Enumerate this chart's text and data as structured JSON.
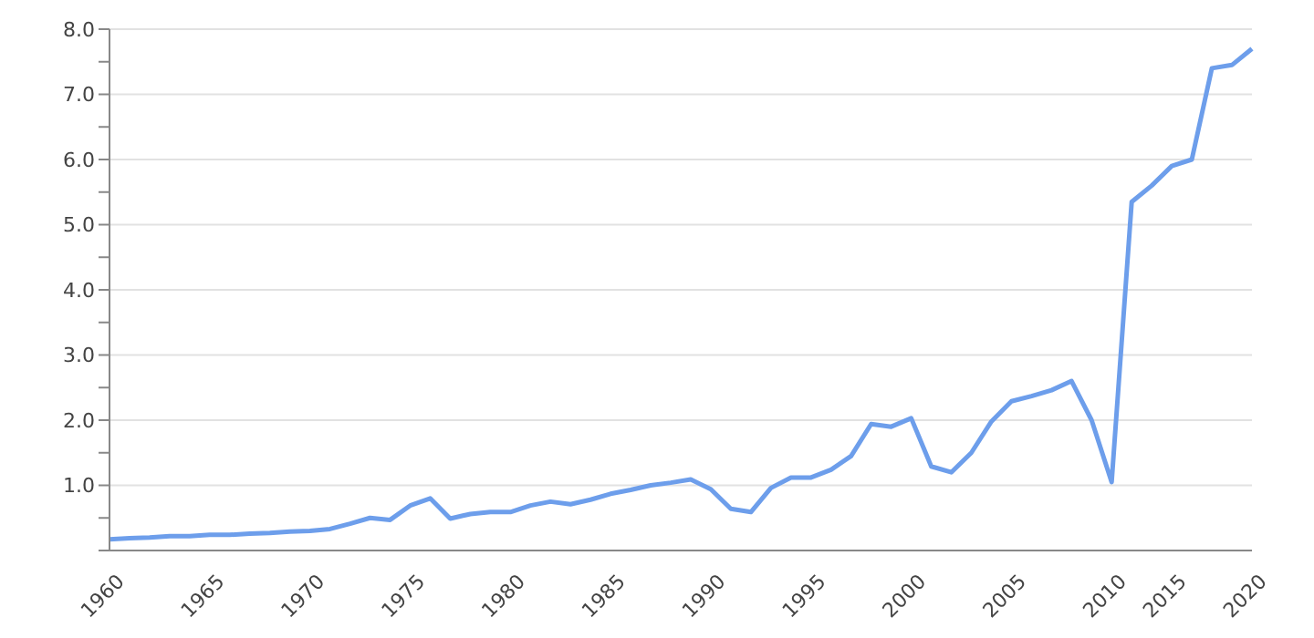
{
  "chart_data": {
    "type": "line",
    "categories": [
      "1960",
      null,
      null,
      null,
      null,
      "1965",
      null,
      null,
      null,
      null,
      "1970",
      null,
      null,
      null,
      null,
      "1975",
      null,
      null,
      null,
      null,
      "1980",
      null,
      null,
      null,
      null,
      "1985",
      null,
      null,
      null,
      null,
      "1990",
      null,
      null,
      null,
      null,
      "1995",
      null,
      null,
      null,
      null,
      "2000",
      null,
      null,
      null,
      null,
      "2005",
      null,
      null,
      null,
      null,
      "2010",
      null,
      null,
      "2015",
      null,
      null,
      null,
      "2020"
    ],
    "series": [
      {
        "color": "#6d9eeb",
        "values": [
          0.17,
          0.19,
          0.2,
          0.22,
          0.22,
          0.24,
          0.24,
          0.26,
          0.27,
          0.29,
          0.3,
          0.33,
          0.41,
          0.5,
          0.47,
          0.69,
          0.8,
          0.49,
          0.56,
          0.59,
          0.59,
          0.69,
          0.75,
          0.71,
          0.78,
          0.87,
          0.93,
          1.0,
          1.04,
          1.09,
          0.94,
          0.64,
          0.59,
          0.96,
          1.12,
          1.12,
          1.24,
          1.45,
          1.94,
          1.9,
          2.03,
          1.29,
          1.2,
          1.5,
          1.98,
          2.29,
          2.37,
          2.46,
          2.6,
          2.0,
          1.05,
          5.35,
          5.6,
          5.9,
          6.0,
          7.4,
          7.45,
          7.7
        ]
      }
    ],
    "ylim": [
      0,
      8
    ],
    "yticks": [
      {
        "value": 0,
        "label": null
      },
      {
        "value": 0.5,
        "label": null
      },
      {
        "value": 1,
        "label": "1.0"
      },
      {
        "value": 1.5,
        "label": null
      },
      {
        "value": 2,
        "label": "2.0"
      },
      {
        "value": 2.5,
        "label": null
      },
      {
        "value": 3,
        "label": "3.0"
      },
      {
        "value": 3.5,
        "label": null
      },
      {
        "value": 4,
        "label": "4.0"
      },
      {
        "value": 4.5,
        "label": null
      },
      {
        "value": 5,
        "label": "5.0"
      },
      {
        "value": 5.5,
        "label": null
      },
      {
        "value": 6,
        "label": "6.0"
      },
      {
        "value": 6.5,
        "label": null
      },
      {
        "value": 7,
        "label": "7.0"
      },
      {
        "value": 7.5,
        "label": null
      },
      {
        "value": 8,
        "label": "8.0"
      }
    ],
    "grid": "y",
    "marker": "none",
    "line_style": "solid",
    "legend": false
  }
}
